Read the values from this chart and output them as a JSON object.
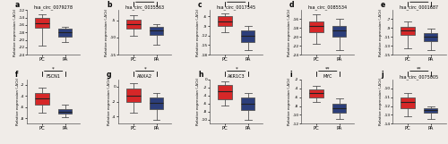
{
  "panels": [
    {
      "label": "a",
      "title": "hsa_circ_0079278",
      "pc": {
        "median": -15.5,
        "q1": -16.8,
        "q3": -14.2,
        "whislo": -21.5,
        "whishi": -13.2
      },
      "pa": {
        "median": -18.0,
        "q1": -19.2,
        "q3": -17.0,
        "whislo": -20.5,
        "whishi": -16.5
      },
      "ylim": [
        -24,
        -12
      ],
      "yticks": [
        -24,
        -22,
        -20,
        -18,
        -16,
        -14,
        -12
      ],
      "sig": null,
      "row": 0
    },
    {
      "label": "b",
      "title": "hsa_circ_0035563",
      "pc": {
        "median": -6.0,
        "q1": -7.5,
        "q3": -4.8,
        "whislo": -9.5,
        "whishi": -3.5
      },
      "pa": {
        "median": -8.0,
        "q1": -9.2,
        "q3": -7.0,
        "whislo": -12.0,
        "whishi": -6.2
      },
      "ylim": [
        -15,
        -2
      ],
      "yticks": [
        -15,
        -10,
        -5
      ],
      "sig": "*",
      "row": 0
    },
    {
      "label": "c",
      "title": "hsa_circ_0017545",
      "pc": {
        "median": -7.5,
        "q1": -9.0,
        "q3": -6.0,
        "whislo": -11.0,
        "whishi": -5.0
      },
      "pa": {
        "median": -12.0,
        "q1": -14.0,
        "q3": -10.5,
        "whislo": -16.5,
        "whishi": -9.0
      },
      "ylim": [
        -18,
        -4
      ],
      "yticks": [
        -18,
        -15,
        -12,
        -9,
        -6
      ],
      "sig": "*",
      "row": 0
    },
    {
      "label": "d",
      "title": "hsa_circ_0085534",
      "pc": {
        "median": -17.5,
        "q1": -19.0,
        "q3": -16.5,
        "whislo": -21.5,
        "whishi": -15.0
      },
      "pa": {
        "median": -18.5,
        "q1": -20.0,
        "q3": -17.5,
        "whislo": -23.0,
        "whishi": -16.0
      },
      "ylim": [
        -24,
        -14
      ],
      "yticks": [
        -24,
        -22,
        -20,
        -18,
        -16
      ],
      "sig": null,
      "row": 0
    },
    {
      "label": "e",
      "title": "hsa_circ_0001687",
      "pc": {
        "median": -9.5,
        "q1": -10.5,
        "q3": -8.8,
        "whislo": -13.5,
        "whishi": -7.5
      },
      "pa": {
        "median": -11.0,
        "q1": -12.0,
        "q3": -10.2,
        "whislo": -14.0,
        "whishi": -9.2
      },
      "ylim": [
        -15,
        -5
      ],
      "yticks": [
        -15,
        -13,
        -11,
        -9,
        -7
      ],
      "sig": "*",
      "row": 0
    },
    {
      "label": "f",
      "title": "FSCN1",
      "pc": {
        "median": -4.5,
        "q1": -5.5,
        "q3": -3.5,
        "whislo": -7.0,
        "whishi": -2.5
      },
      "pa": {
        "median": -6.8,
        "q1": -7.2,
        "q3": -6.3,
        "whislo": -7.8,
        "whishi": -5.5
      },
      "ylim": [
        -9,
        -1
      ],
      "yticks": [
        -8,
        -6,
        -4,
        -2
      ],
      "sig": "*",
      "row": 1
    },
    {
      "label": "g",
      "title": "ANXA2",
      "pc": {
        "median": -1.2,
        "q1": -2.0,
        "q3": -0.3,
        "whislo": -3.5,
        "whishi": 0.5
      },
      "pa": {
        "median": -2.2,
        "q1": -3.0,
        "q3": -1.5,
        "whislo": -4.5,
        "whishi": -0.8
      },
      "ylim": [
        -5,
        1
      ],
      "yticks": [
        -4,
        -2,
        0
      ],
      "sig": "*",
      "row": 1
    },
    {
      "label": "h",
      "title": "AKR1C3",
      "pc": {
        "median": -3.0,
        "q1": -5.0,
        "q3": -1.5,
        "whislo": -6.5,
        "whishi": -0.5
      },
      "pa": {
        "median": -6.0,
        "q1": -7.5,
        "q3": -4.5,
        "whislo": -10.0,
        "whishi": -3.5
      },
      "ylim": [
        -11,
        0
      ],
      "yticks": [
        -10,
        -8,
        -6,
        -4,
        -2,
        0
      ],
      "sig": "*",
      "row": 1
    },
    {
      "label": "i",
      "title": "MYC",
      "pc": {
        "median": -5.0,
        "q1": -6.0,
        "q3": -4.2,
        "whislo": -7.0,
        "whishi": -3.5
      },
      "pa": {
        "median": -8.5,
        "q1": -9.5,
        "q3": -7.5,
        "whislo": -11.0,
        "whishi": -6.2
      },
      "ylim": [
        -12,
        -2
      ],
      "yticks": [
        -12,
        -10,
        -8,
        -6,
        -4,
        -2
      ],
      "sig": "**",
      "row": 1
    },
    {
      "label": "j",
      "title": "hsa_circ_0075005",
      "pc": {
        "median": -11.5,
        "q1": -12.2,
        "q3": -11.0,
        "whislo": -13.2,
        "whishi": -10.5
      },
      "pa": {
        "median": -12.5,
        "q1": -12.8,
        "q3": -12.2,
        "whislo": -13.5,
        "whishi": -12.0
      },
      "ylim": [
        -14,
        -9
      ],
      "yticks": [
        -14,
        -13,
        -12,
        -11,
        -10
      ],
      "sig": "**",
      "row": 1
    }
  ],
  "pc_color": "#d62728",
  "pa_color": "#2c3e7a",
  "bg_color": "#f0ece8",
  "ylabel": "Relative expression (-ΔCt)",
  "xlabel_pc": "PC",
  "xlabel_pa": "PA"
}
